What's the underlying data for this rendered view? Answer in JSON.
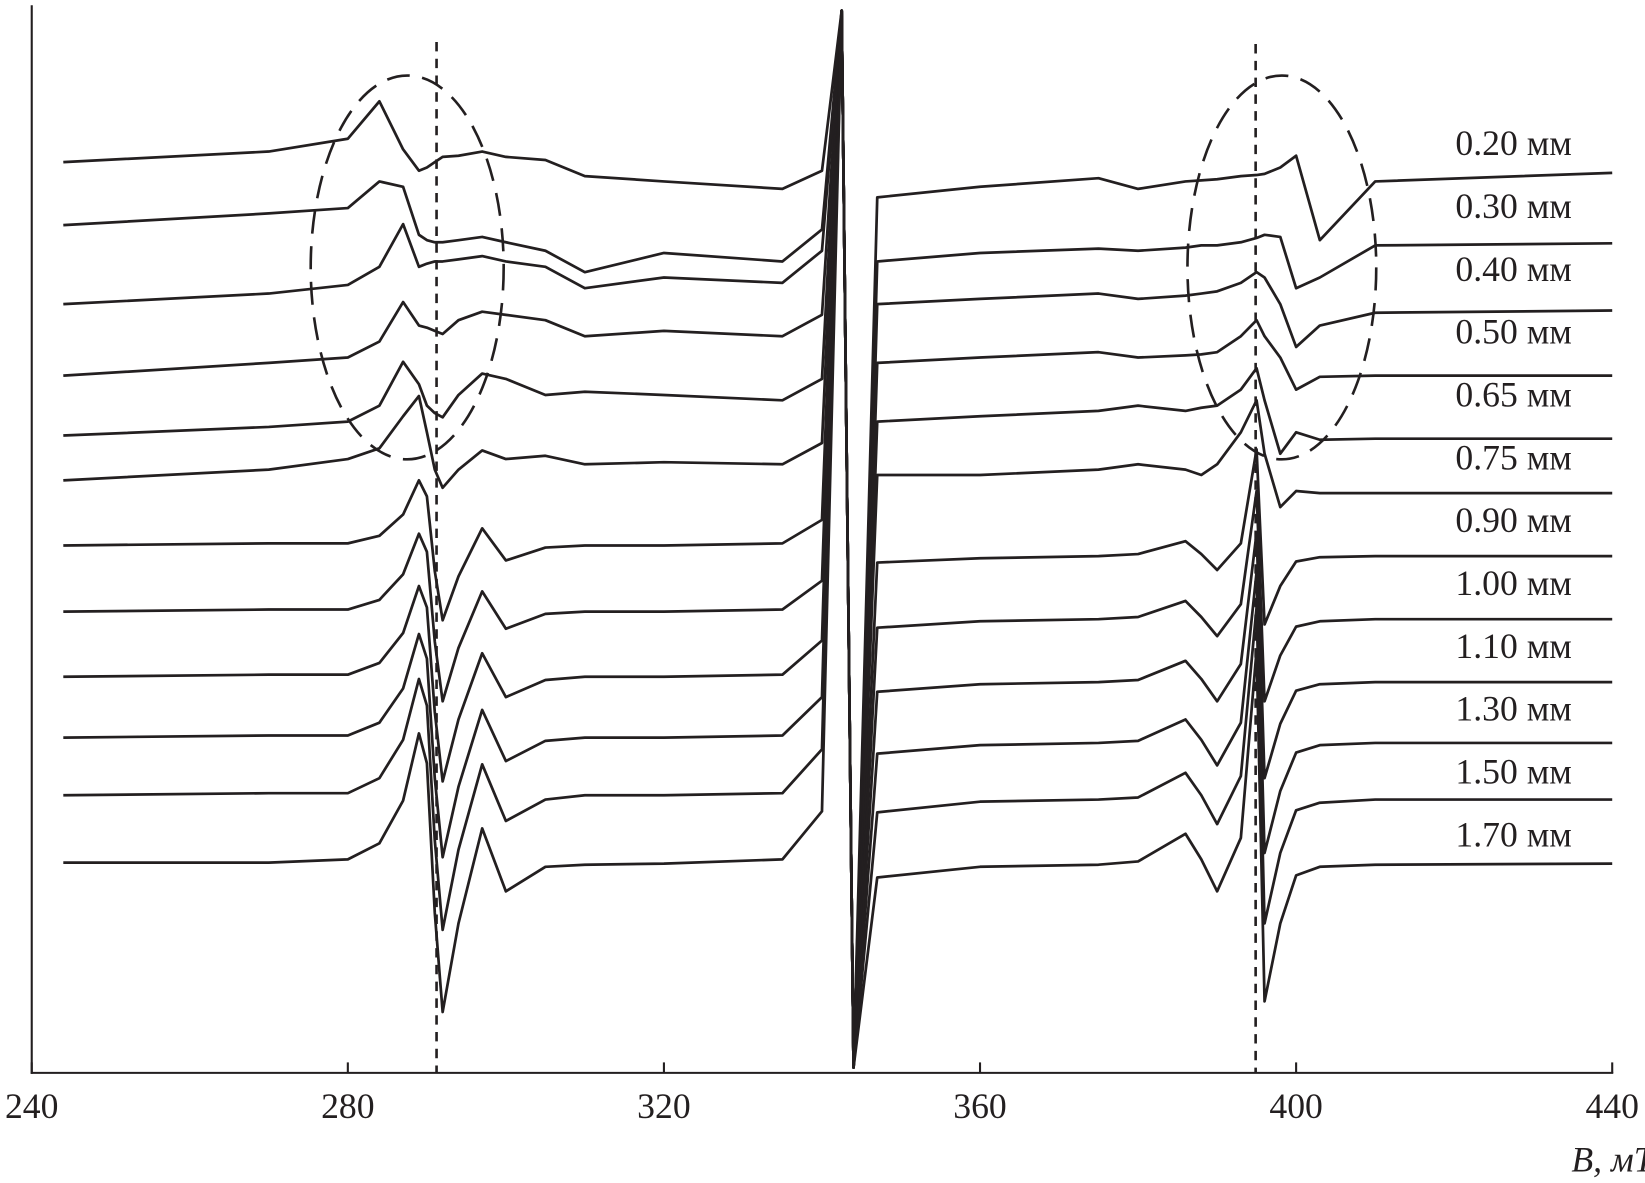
{
  "chart_data": {
    "type": "line",
    "x_label": "B, мТл",
    "xlim": [
      240,
      440
    ],
    "xticks": [
      240,
      280,
      320,
      360,
      400,
      440
    ],
    "ylim": [
      0,
      100
    ],
    "x": [
      244,
      270,
      280,
      284,
      287,
      289,
      290,
      291,
      292,
      294,
      297,
      300,
      305,
      310,
      320,
      335,
      340,
      342.5,
      344,
      347,
      360,
      375,
      380,
      386,
      388,
      390,
      393,
      395,
      396,
      398,
      400,
      403,
      410,
      440
    ],
    "series": [
      {
        "name": "0.20 мм",
        "color": "#231f20",
        "values": [
          85.3,
          86.3,
          87.5,
          91.0,
          86.5,
          84.5,
          84.8,
          85.3,
          85.8,
          85.9,
          86.3,
          85.8,
          85.5,
          84.0,
          83.5,
          82.8,
          84.5,
          99.5,
          0.5,
          82.0,
          83.0,
          83.8,
          82.8,
          83.5,
          83.6,
          83.7,
          84.0,
          84.1,
          84.2,
          84.8,
          85.9,
          78.0,
          83.5,
          84.3
        ]
      },
      {
        "name": "0.30 мм",
        "color": "#231f20",
        "values": [
          79.4,
          80.5,
          81.0,
          83.5,
          83.0,
          78.5,
          78.0,
          77.8,
          77.8,
          78.0,
          78.3,
          77.8,
          77.0,
          75.0,
          76.8,
          76.0,
          79.0,
          99.5,
          0.5,
          76.0,
          76.8,
          77.2,
          77.0,
          77.3,
          77.5,
          77.5,
          77.8,
          78.2,
          78.5,
          78.3,
          73.5,
          74.5,
          77.5,
          77.7
        ]
      },
      {
        "name": "0.40 мм",
        "color": "#231f20",
        "values": [
          72.0,
          73.0,
          73.8,
          75.5,
          79.5,
          75.5,
          75.8,
          76.0,
          76.0,
          76.2,
          76.5,
          76.0,
          75.5,
          73.5,
          74.5,
          74.0,
          77.0,
          99.5,
          0.5,
          72.0,
          72.5,
          73.0,
          72.5,
          72.8,
          73.0,
          73.2,
          74.0,
          75.0,
          74.5,
          72.0,
          68.0,
          70.0,
          71.2,
          71.4
        ]
      },
      {
        "name": "0.50 мм",
        "color": "#231f20",
        "values": [
          65.3,
          66.5,
          67.0,
          68.5,
          72.2,
          70.0,
          69.8,
          69.5,
          69.2,
          70.5,
          71.3,
          71.0,
          70.5,
          69.0,
          69.5,
          69.0,
          71.0,
          99.5,
          0.5,
          66.5,
          67.0,
          67.5,
          67.0,
          67.2,
          67.3,
          67.5,
          69.0,
          70.5,
          69.0,
          67.0,
          64.0,
          65.2,
          65.3,
          65.3
        ]
      },
      {
        "name": "0.65 мм",
        "color": "#231f20",
        "values": [
          59.7,
          60.5,
          61.0,
          62.5,
          66.6,
          64.5,
          62.5,
          61.8,
          61.4,
          63.5,
          65.5,
          65.0,
          63.5,
          63.8,
          63.5,
          63.0,
          65.0,
          99.5,
          0.5,
          61.0,
          61.5,
          62.0,
          62.5,
          62.0,
          62.3,
          62.5,
          64.0,
          66.0,
          63.0,
          58.0,
          60.0,
          59.3,
          59.4,
          59.4
        ]
      },
      {
        "name": "0.75 мм",
        "color": "#231f20",
        "values": [
          55.5,
          56.5,
          57.5,
          58.5,
          61.5,
          63.4,
          60.0,
          56.5,
          54.8,
          56.5,
          58.3,
          57.5,
          57.8,
          57.0,
          57.2,
          57.0,
          59.0,
          99.5,
          0.5,
          56.0,
          56.0,
          56.5,
          57.0,
          56.5,
          56.0,
          57.0,
          60.0,
          63.0,
          58.0,
          53.0,
          54.5,
          54.3,
          54.3,
          54.3
        ]
      },
      {
        "name": "0.90 мм",
        "color": "#231f20",
        "values": [
          49.4,
          49.6,
          49.6,
          50.3,
          52.3,
          55.5,
          54.0,
          47.0,
          42.4,
          46.5,
          51.0,
          48.0,
          49.2,
          49.4,
          49.4,
          49.6,
          51.8,
          99.5,
          0.5,
          47.8,
          48.2,
          48.4,
          48.6,
          49.8,
          48.6,
          47.1,
          49.6,
          58.4,
          42.0,
          45.6,
          47.9,
          48.3,
          48.4,
          48.4
        ]
      },
      {
        "name": "1.00 мм",
        "color": "#231f20",
        "values": [
          43.2,
          43.4,
          43.4,
          44.3,
          46.7,
          50.5,
          48.8,
          40.4,
          34.8,
          39.8,
          45.1,
          41.6,
          43.0,
          43.2,
          43.2,
          43.4,
          46.1,
          99.5,
          0.5,
          41.7,
          42.3,
          42.5,
          42.7,
          44.2,
          42.7,
          40.9,
          43.9,
          54.5,
          34.8,
          39.1,
          41.8,
          42.3,
          42.5,
          42.5
        ]
      },
      {
        "name": "1.10 мм",
        "color": "#231f20",
        "values": [
          37.1,
          37.3,
          37.3,
          38.4,
          41.2,
          45.6,
          43.6,
          33.8,
          27.3,
          33.1,
          39.3,
          35.2,
          36.8,
          37.1,
          37.1,
          37.3,
          40.5,
          99.5,
          0.5,
          35.7,
          36.4,
          36.6,
          36.8,
          38.6,
          36.9,
          34.8,
          38.3,
          50.6,
          27.6,
          32.7,
          35.8,
          36.4,
          36.6,
          36.6
        ]
      },
      {
        "name": "1.30 мм",
        "color": "#231f20",
        "values": [
          31.4,
          31.6,
          31.6,
          32.8,
          36.0,
          41.1,
          38.8,
          27.6,
          20.2,
          26.8,
          34.0,
          29.2,
          31.1,
          31.4,
          31.4,
          31.6,
          35.2,
          99.5,
          0.5,
          29.9,
          30.7,
          30.9,
          31.1,
          33.1,
          31.2,
          28.8,
          32.8,
          46.9,
          20.6,
          26.4,
          30.0,
          30.7,
          30.9,
          30.9
        ]
      },
      {
        "name": "1.50 мм",
        "color": "#231f20",
        "values": [
          26.0,
          26.2,
          26.2,
          27.6,
          31.2,
          36.9,
          34.4,
          21.8,
          13.4,
          20.9,
          28.9,
          23.6,
          25.6,
          26.0,
          26.0,
          26.2,
          30.3,
          99.5,
          0.5,
          24.4,
          25.4,
          25.6,
          25.8,
          28.1,
          26.0,
          23.3,
          27.8,
          43.6,
          14.0,
          20.6,
          24.6,
          25.3,
          25.6,
          25.6
        ]
      },
      {
        "name": "1.70 мм",
        "color": "#231f20",
        "values": [
          19.7,
          19.7,
          20.0,
          21.5,
          25.5,
          31.8,
          29.0,
          15.0,
          5.7,
          14.0,
          22.9,
          17.0,
          19.3,
          19.5,
          19.6,
          20.0,
          24.5,
          99.5,
          0.5,
          18.3,
          19.3,
          19.5,
          19.8,
          22.4,
          20.0,
          17.0,
          22.0,
          39.6,
          6.7,
          14.0,
          18.5,
          19.3,
          19.5,
          19.6
        ]
      }
    ]
  }
}
